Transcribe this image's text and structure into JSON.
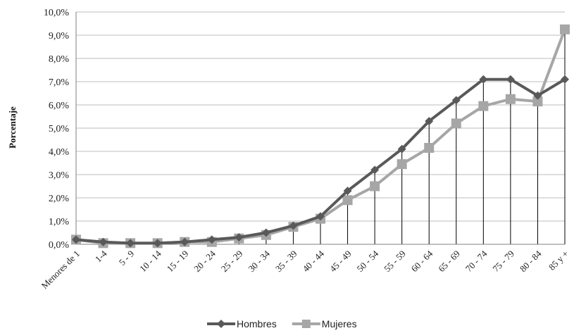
{
  "chart_data": {
    "type": "line",
    "title": "",
    "xlabel": "",
    "ylabel": "Porcentaje",
    "ylim": [
      0,
      10
    ],
    "yticks": [
      "0,0%",
      "1,0%",
      "2,0%",
      "3,0%",
      "4,0%",
      "5,0%",
      "6,0%",
      "7,0%",
      "8,0%",
      "9,0%",
      "10,0%"
    ],
    "categories": [
      "Menores de 1",
      "1-4",
      "5 - 9",
      "10 - 14",
      "15 - 19",
      "20 - 24",
      "25 - 29",
      "30 - 34",
      "35 - 39",
      "40 - 44",
      "45 - 49",
      "50 - 54",
      "55 - 59",
      "60 - 64",
      "65 - 69",
      "70 - 74",
      "75 - 79",
      "80 - 84",
      "85 y +"
    ],
    "series": [
      {
        "name": "Hombres",
        "color": "#595959",
        "marker": "diamond",
        "values": [
          0.2,
          0.1,
          0.05,
          0.05,
          0.1,
          0.2,
          0.3,
          0.5,
          0.8,
          1.2,
          2.3,
          3.2,
          4.1,
          5.3,
          6.2,
          7.1,
          7.1,
          6.4,
          7.1
        ]
      },
      {
        "name": "Mujeres",
        "color": "#a6a6a6",
        "marker": "square",
        "values": [
          0.2,
          0.05,
          0.05,
          0.05,
          0.1,
          0.1,
          0.25,
          0.4,
          0.75,
          1.1,
          1.9,
          2.5,
          3.45,
          4.15,
          5.2,
          5.95,
          6.25,
          6.15,
          9.25
        ]
      }
    ],
    "grid": "horizontal",
    "legend": "bottom"
  }
}
